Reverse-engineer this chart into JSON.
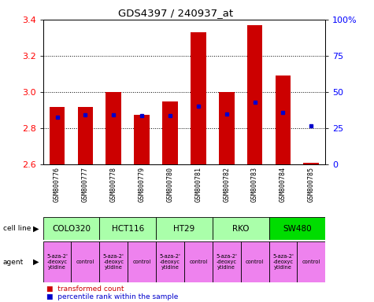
{
  "title": "GDS4397 / 240937_at",
  "samples": [
    "GSM800776",
    "GSM800777",
    "GSM800778",
    "GSM800779",
    "GSM800780",
    "GSM800781",
    "GSM800782",
    "GSM800783",
    "GSM800784",
    "GSM800785"
  ],
  "red_values": [
    2.92,
    2.92,
    3.0,
    2.875,
    2.95,
    3.33,
    3.0,
    3.37,
    3.09,
    2.61
  ],
  "blue_values": [
    2.862,
    2.873,
    2.873,
    2.87,
    2.872,
    2.924,
    2.877,
    2.942,
    2.887,
    2.812
  ],
  "ylim_left": [
    2.6,
    3.4
  ],
  "ylim_right": [
    0,
    100
  ],
  "yticks_left": [
    2.6,
    2.8,
    3.0,
    3.2,
    3.4
  ],
  "yticks_right": [
    0,
    25,
    50,
    75,
    100
  ],
  "right_labels": [
    "0",
    "25",
    "50",
    "75",
    "100%"
  ],
  "cell_lines": [
    {
      "name": "COLO320",
      "span": [
        0,
        2
      ],
      "color": "#aaffaa"
    },
    {
      "name": "HCT116",
      "span": [
        2,
        4
      ],
      "color": "#aaffaa"
    },
    {
      "name": "HT29",
      "span": [
        4,
        6
      ],
      "color": "#aaffaa"
    },
    {
      "name": "RKO",
      "span": [
        6,
        8
      ],
      "color": "#aaffaa"
    },
    {
      "name": "SW480",
      "span": [
        8,
        10
      ],
      "color": "#00dd00"
    }
  ],
  "agents": [
    {
      "name": "5-aza-2'\n-deoxyc\nytidine",
      "span": [
        0,
        1
      ],
      "color": "#ee82ee"
    },
    {
      "name": "control",
      "span": [
        1,
        2
      ],
      "color": "#ee82ee"
    },
    {
      "name": "5-aza-2'\n-deoxyc\nytidine",
      "span": [
        2,
        3
      ],
      "color": "#ee82ee"
    },
    {
      "name": "control",
      "span": [
        3,
        4
      ],
      "color": "#ee82ee"
    },
    {
      "name": "5-aza-2'\n-deoxyc\nytidine",
      "span": [
        4,
        5
      ],
      "color": "#ee82ee"
    },
    {
      "name": "control",
      "span": [
        5,
        6
      ],
      "color": "#ee82ee"
    },
    {
      "name": "5-aza-2'\n-deoxyc\nytidine",
      "span": [
        6,
        7
      ],
      "color": "#ee82ee"
    },
    {
      "name": "control",
      "span": [
        7,
        8
      ],
      "color": "#ee82ee"
    },
    {
      "name": "5-aza-2'\n-deoxyc\nytidine",
      "span": [
        8,
        9
      ],
      "color": "#ee82ee"
    },
    {
      "name": "control",
      "span": [
        9,
        10
      ],
      "color": "#ee82ee"
    }
  ],
  "bar_color": "#cc0000",
  "dot_color": "#0000cc",
  "bar_width": 0.55,
  "background_color": "#ffffff",
  "sample_box_color": "#c8c8c8",
  "grid_dotted_vals": [
    2.8,
    3.0,
    3.2
  ]
}
